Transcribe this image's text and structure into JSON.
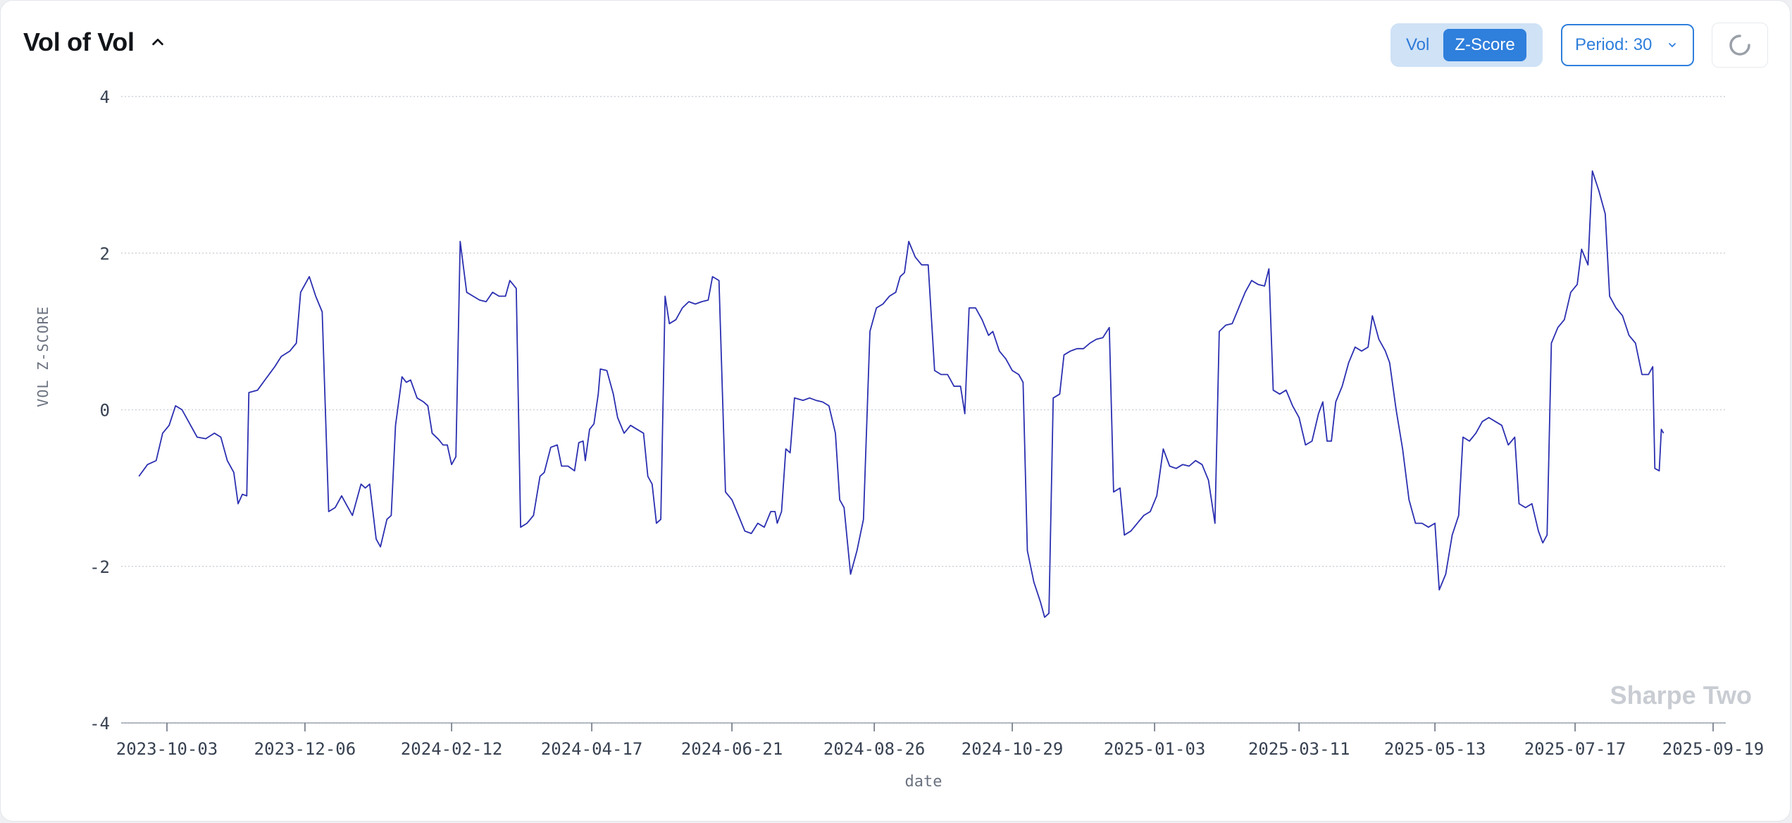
{
  "header": {
    "title": "Vol of Vol",
    "collapse_icon": "chevron-up-icon",
    "toggle": {
      "options": [
        "Vol",
        "Z-Score"
      ],
      "selected": "Z-Score"
    },
    "period_label": "Period: 30",
    "period_icon": "chevron-down-icon",
    "refresh_icon": "spinner-icon"
  },
  "watermark": "Sharpe Two",
  "colors": {
    "line": "#2b2fb0",
    "accent": "#2f7fdc",
    "toggle_bg": "#cfe2f6",
    "grid": "#cfd3d8",
    "watermark": "#c9cdd3"
  },
  "chart_data": {
    "type": "line",
    "title": "",
    "xlabel": "date",
    "ylabel": "VOL Z-SCORE",
    "ylim": [
      -4,
      4
    ],
    "yticks": [
      "4",
      "2",
      "0",
      "-2",
      "-4"
    ],
    "xticks": [
      "2023-10-03",
      "2023-12-06",
      "2024-02-12",
      "2024-04-17",
      "2024-06-21",
      "2024-08-26",
      "2024-10-29",
      "2025-01-03",
      "2025-03-11",
      "2025-05-13",
      "2025-07-17",
      "2025-09-19"
    ],
    "grid": "horizontal dotted",
    "series": [
      {
        "points": [
          [
            "2023-09-20",
            -0.85
          ],
          [
            "2023-09-24",
            -0.7
          ],
          [
            "2023-09-28",
            -0.65
          ],
          [
            "2023-10-01",
            -0.3
          ],
          [
            "2023-10-04",
            -0.2
          ],
          [
            "2023-10-07",
            0.05
          ],
          [
            "2023-10-10",
            0.0
          ],
          [
            "2023-10-13",
            -0.15
          ],
          [
            "2023-10-17",
            -0.35
          ],
          [
            "2023-10-21",
            -0.37
          ],
          [
            "2023-10-25",
            -0.3
          ],
          [
            "2023-10-28",
            -0.35
          ],
          [
            "2023-10-31",
            -0.65
          ],
          [
            "2023-11-03",
            -0.8
          ],
          [
            "2023-11-05",
            -1.2
          ],
          [
            "2023-11-07",
            -1.08
          ],
          [
            "2023-11-09",
            -1.1
          ],
          [
            "2023-11-10",
            0.22
          ],
          [
            "2023-11-14",
            0.25
          ],
          [
            "2023-11-18",
            0.4
          ],
          [
            "2023-11-22",
            0.55
          ],
          [
            "2023-11-25",
            0.68
          ],
          [
            "2023-11-29",
            0.75
          ],
          [
            "2023-12-02",
            0.85
          ],
          [
            "2023-12-04",
            1.5
          ],
          [
            "2023-12-08",
            1.7
          ],
          [
            "2023-12-11",
            1.45
          ],
          [
            "2023-12-14",
            1.25
          ],
          [
            "2023-12-17",
            -1.3
          ],
          [
            "2023-12-20",
            -1.25
          ],
          [
            "2023-12-23",
            -1.1
          ],
          [
            "2023-12-25",
            -1.2
          ],
          [
            "2023-12-28",
            -1.35
          ],
          [
            "2024-01-01",
            -0.95
          ],
          [
            "2024-01-03",
            -1.0
          ],
          [
            "2024-01-05",
            -0.95
          ],
          [
            "2024-01-08",
            -1.65
          ],
          [
            "2024-01-10",
            -1.75
          ],
          [
            "2024-01-13",
            -1.4
          ],
          [
            "2024-01-15",
            -1.35
          ],
          [
            "2024-01-17",
            -0.2
          ],
          [
            "2024-01-20",
            0.42
          ],
          [
            "2024-01-22",
            0.35
          ],
          [
            "2024-01-24",
            0.38
          ],
          [
            "2024-01-27",
            0.15
          ],
          [
            "2024-01-30",
            0.1
          ],
          [
            "2024-02-01",
            0.05
          ],
          [
            "2024-02-03",
            -0.3
          ],
          [
            "2024-02-06",
            -0.38
          ],
          [
            "2024-02-08",
            -0.45
          ],
          [
            "2024-02-10",
            -0.45
          ],
          [
            "2024-02-12",
            -0.7
          ],
          [
            "2024-02-14",
            -0.6
          ],
          [
            "2024-02-16",
            2.15
          ],
          [
            "2024-02-19",
            1.5
          ],
          [
            "2024-02-22",
            1.45
          ],
          [
            "2024-02-25",
            1.4
          ],
          [
            "2024-02-28",
            1.38
          ],
          [
            "2024-03-02",
            1.5
          ],
          [
            "2024-03-05",
            1.45
          ],
          [
            "2024-03-08",
            1.45
          ],
          [
            "2024-03-10",
            1.65
          ],
          [
            "2024-03-13",
            1.55
          ],
          [
            "2024-03-15",
            -1.5
          ],
          [
            "2024-03-18",
            -1.45
          ],
          [
            "2024-03-21",
            -1.35
          ],
          [
            "2024-03-24",
            -0.85
          ],
          [
            "2024-03-26",
            -0.8
          ],
          [
            "2024-03-29",
            -0.48
          ],
          [
            "2024-04-01",
            -0.45
          ],
          [
            "2024-04-03",
            -0.72
          ],
          [
            "2024-04-06",
            -0.72
          ],
          [
            "2024-04-09",
            -0.78
          ],
          [
            "2024-04-11",
            -0.42
          ],
          [
            "2024-04-13",
            -0.4
          ],
          [
            "2024-04-14",
            -0.65
          ],
          [
            "2024-04-16",
            -0.25
          ],
          [
            "2024-04-18",
            -0.18
          ],
          [
            "2024-04-20",
            0.2
          ],
          [
            "2024-04-21",
            0.52
          ],
          [
            "2024-04-24",
            0.5
          ],
          [
            "2024-04-27",
            0.2
          ],
          [
            "2024-04-29",
            -0.1
          ],
          [
            "2024-05-02",
            -0.3
          ],
          [
            "2024-05-05",
            -0.2
          ],
          [
            "2024-05-08",
            -0.25
          ],
          [
            "2024-05-11",
            -0.3
          ],
          [
            "2024-05-13",
            -0.85
          ],
          [
            "2024-05-15",
            -0.95
          ],
          [
            "2024-05-17",
            -1.45
          ],
          [
            "2024-05-19",
            -1.4
          ],
          [
            "2024-05-21",
            1.45
          ],
          [
            "2024-05-23",
            1.1
          ],
          [
            "2024-05-26",
            1.15
          ],
          [
            "2024-05-29",
            1.3
          ],
          [
            "2024-06-01",
            1.38
          ],
          [
            "2024-06-04",
            1.35
          ],
          [
            "2024-06-07",
            1.38
          ],
          [
            "2024-06-10",
            1.4
          ],
          [
            "2024-06-12",
            1.7
          ],
          [
            "2024-06-15",
            1.65
          ],
          [
            "2024-06-18",
            -1.05
          ],
          [
            "2024-06-21",
            -1.15
          ],
          [
            "2024-06-24",
            -1.35
          ],
          [
            "2024-06-27",
            -1.55
          ],
          [
            "2024-06-30",
            -1.58
          ],
          [
            "2024-07-03",
            -1.45
          ],
          [
            "2024-07-06",
            -1.5
          ],
          [
            "2024-07-09",
            -1.3
          ],
          [
            "2024-07-11",
            -1.3
          ],
          [
            "2024-07-12",
            -1.45
          ],
          [
            "2024-07-14",
            -1.3
          ],
          [
            "2024-07-16",
            -0.5
          ],
          [
            "2024-07-18",
            -0.55
          ],
          [
            "2024-07-20",
            0.15
          ],
          [
            "2024-07-24",
            0.12
          ],
          [
            "2024-07-27",
            0.15
          ],
          [
            "2024-07-30",
            0.12
          ],
          [
            "2024-08-02",
            0.1
          ],
          [
            "2024-08-05",
            0.05
          ],
          [
            "2024-08-08",
            -0.3
          ],
          [
            "2024-08-10",
            -1.15
          ],
          [
            "2024-08-12",
            -1.25
          ],
          [
            "2024-08-15",
            -2.1
          ],
          [
            "2024-08-18",
            -1.8
          ],
          [
            "2024-08-21",
            -1.4
          ],
          [
            "2024-08-24",
            1.0
          ],
          [
            "2024-08-27",
            1.3
          ],
          [
            "2024-08-30",
            1.35
          ],
          [
            "2024-09-02",
            1.45
          ],
          [
            "2024-09-05",
            1.5
          ],
          [
            "2024-09-07",
            1.7
          ],
          [
            "2024-09-09",
            1.75
          ],
          [
            "2024-09-11",
            2.15
          ],
          [
            "2024-09-14",
            1.95
          ],
          [
            "2024-09-17",
            1.85
          ],
          [
            "2024-09-20",
            1.85
          ],
          [
            "2024-09-23",
            0.5
          ],
          [
            "2024-09-26",
            0.45
          ],
          [
            "2024-09-29",
            0.45
          ],
          [
            "2024-10-02",
            0.3
          ],
          [
            "2024-10-05",
            0.3
          ],
          [
            "2024-10-07",
            -0.05
          ],
          [
            "2024-10-09",
            1.3
          ],
          [
            "2024-10-12",
            1.3
          ],
          [
            "2024-10-15",
            1.15
          ],
          [
            "2024-10-18",
            0.95
          ],
          [
            "2024-10-20",
            1.0
          ],
          [
            "2024-10-23",
            0.75
          ],
          [
            "2024-10-26",
            0.65
          ],
          [
            "2024-10-29",
            0.5
          ],
          [
            "2024-11-01",
            0.45
          ],
          [
            "2024-11-03",
            0.35
          ],
          [
            "2024-11-05",
            -1.8
          ],
          [
            "2024-11-08",
            -2.2
          ],
          [
            "2024-11-11",
            -2.45
          ],
          [
            "2024-11-13",
            -2.65
          ],
          [
            "2024-11-15",
            -2.6
          ],
          [
            "2024-11-17",
            0.15
          ],
          [
            "2024-11-20",
            0.2
          ],
          [
            "2024-11-22",
            0.7
          ],
          [
            "2024-11-25",
            0.75
          ],
          [
            "2024-11-28",
            0.78
          ],
          [
            "2024-12-01",
            0.78
          ],
          [
            "2024-12-04",
            0.85
          ],
          [
            "2024-12-07",
            0.9
          ],
          [
            "2024-12-10",
            0.92
          ],
          [
            "2024-12-13",
            1.05
          ],
          [
            "2024-12-15",
            -1.05
          ],
          [
            "2024-12-18",
            -1.0
          ],
          [
            "2024-12-20",
            -1.6
          ],
          [
            "2024-12-23",
            -1.55
          ],
          [
            "2024-12-26",
            -1.45
          ],
          [
            "2024-12-29",
            -1.35
          ],
          [
            "2025-01-01",
            -1.3
          ],
          [
            "2025-01-04",
            -1.1
          ],
          [
            "2025-01-07",
            -0.5
          ],
          [
            "2025-01-10",
            -0.72
          ],
          [
            "2025-01-13",
            -0.75
          ],
          [
            "2025-01-16",
            -0.7
          ],
          [
            "2025-01-19",
            -0.72
          ],
          [
            "2025-01-22",
            -0.65
          ],
          [
            "2025-01-25",
            -0.7
          ],
          [
            "2025-01-28",
            -0.9
          ],
          [
            "2025-01-31",
            -1.45
          ],
          [
            "2025-02-02",
            1.0
          ],
          [
            "2025-02-05",
            1.08
          ],
          [
            "2025-02-08",
            1.1
          ],
          [
            "2025-02-11",
            1.3
          ],
          [
            "2025-02-14",
            1.5
          ],
          [
            "2025-02-17",
            1.65
          ],
          [
            "2025-02-20",
            1.6
          ],
          [
            "2025-02-23",
            1.58
          ],
          [
            "2025-02-25",
            1.8
          ],
          [
            "2025-02-27",
            0.25
          ],
          [
            "2025-03-02",
            0.2
          ],
          [
            "2025-03-05",
            0.25
          ],
          [
            "2025-03-08",
            0.05
          ],
          [
            "2025-03-11",
            -0.1
          ],
          [
            "2025-03-14",
            -0.45
          ],
          [
            "2025-03-17",
            -0.4
          ],
          [
            "2025-03-20",
            -0.05
          ],
          [
            "2025-03-22",
            0.1
          ],
          [
            "2025-03-24",
            -0.4
          ],
          [
            "2025-03-26",
            -0.4
          ],
          [
            "2025-03-28",
            0.1
          ],
          [
            "2025-03-31",
            0.3
          ],
          [
            "2025-04-03",
            0.6
          ],
          [
            "2025-04-06",
            0.8
          ],
          [
            "2025-04-09",
            0.75
          ],
          [
            "2025-04-12",
            0.8
          ],
          [
            "2025-04-14",
            1.2
          ],
          [
            "2025-04-17",
            0.9
          ],
          [
            "2025-04-20",
            0.75
          ],
          [
            "2025-04-22",
            0.6
          ],
          [
            "2025-04-25",
            0.0
          ],
          [
            "2025-04-28",
            -0.5
          ],
          [
            "2025-05-01",
            -1.15
          ],
          [
            "2025-05-04",
            -1.45
          ],
          [
            "2025-05-07",
            -1.45
          ],
          [
            "2025-05-10",
            -1.5
          ],
          [
            "2025-05-13",
            -1.45
          ],
          [
            "2025-05-15",
            -2.3
          ],
          [
            "2025-05-18",
            -2.1
          ],
          [
            "2025-05-21",
            -1.6
          ],
          [
            "2025-05-24",
            -1.35
          ],
          [
            "2025-05-26",
            -0.35
          ],
          [
            "2025-05-29",
            -0.4
          ],
          [
            "2025-06-01",
            -0.3
          ],
          [
            "2025-06-04",
            -0.15
          ],
          [
            "2025-06-07",
            -0.1
          ],
          [
            "2025-06-10",
            -0.15
          ],
          [
            "2025-06-13",
            -0.2
          ],
          [
            "2025-06-16",
            -0.45
          ],
          [
            "2025-06-19",
            -0.35
          ],
          [
            "2025-06-21",
            -1.2
          ],
          [
            "2025-06-24",
            -1.25
          ],
          [
            "2025-06-27",
            -1.2
          ],
          [
            "2025-06-30",
            -1.55
          ],
          [
            "2025-07-02",
            -1.7
          ],
          [
            "2025-07-04",
            -1.6
          ],
          [
            "2025-07-06",
            0.85
          ],
          [
            "2025-07-09",
            1.05
          ],
          [
            "2025-07-12",
            1.15
          ],
          [
            "2025-07-15",
            1.5
          ],
          [
            "2025-07-18",
            1.6
          ],
          [
            "2025-07-20",
            2.05
          ],
          [
            "2025-07-23",
            1.85
          ],
          [
            "2025-07-25",
            3.05
          ],
          [
            "2025-07-28",
            2.8
          ],
          [
            "2025-07-31",
            2.5
          ],
          [
            "2025-08-02",
            1.45
          ],
          [
            "2025-08-05",
            1.3
          ],
          [
            "2025-08-08",
            1.2
          ],
          [
            "2025-08-11",
            0.95
          ],
          [
            "2025-08-14",
            0.85
          ],
          [
            "2025-08-17",
            0.45
          ],
          [
            "2025-08-20",
            0.45
          ],
          [
            "2025-08-22",
            0.55
          ],
          [
            "2025-08-23",
            -0.75
          ],
          [
            "2025-08-25",
            -0.78
          ],
          [
            "2025-08-26",
            -0.25
          ],
          [
            "2025-08-27",
            -0.3
          ]
        ]
      }
    ]
  }
}
